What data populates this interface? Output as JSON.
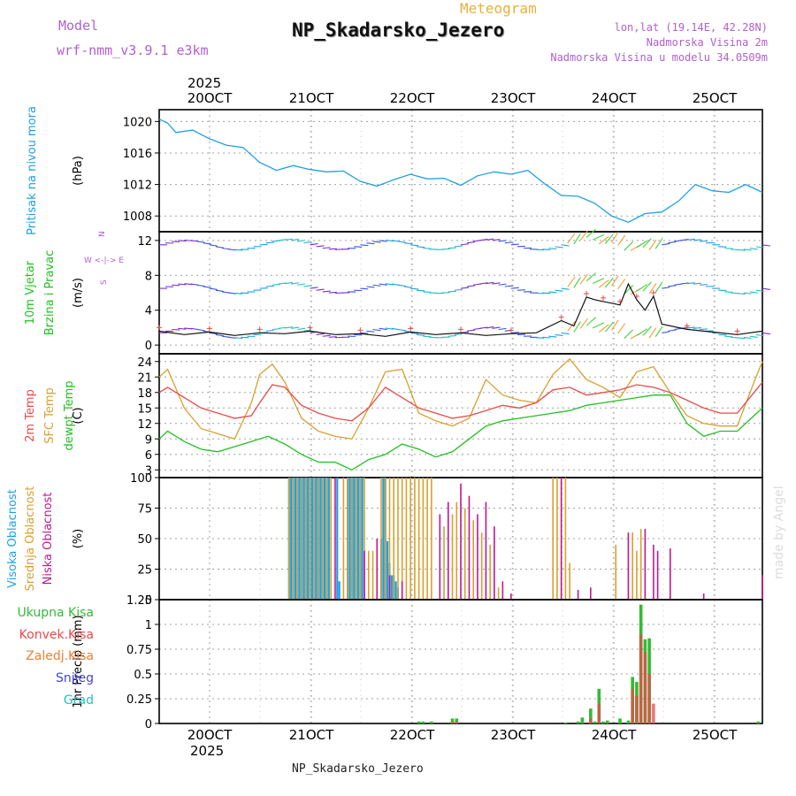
{
  "header": {
    "model_label": "Model",
    "model_name": "wrf-nmm_v3.9.1 e3km",
    "product": "Meteogram",
    "station": "NP_Skadarsko_Jezero",
    "lonlat": "lon,lat (19.14E, 42.28N)",
    "altitude": "Nadmorska Visina 2m",
    "model_altitude": "Nadmorska Visina u modelu 34.0509m",
    "footer_station": "NP_Skadarsko_Jezero",
    "credit": "made by Angel",
    "year_top": "2025",
    "year_bottom": "2025"
  },
  "colors": {
    "pressure": "#1fa0e6",
    "temp2m": "#e84a4a",
    "sfc": "#d8a030",
    "dewpt": "#22c022",
    "high_cloud": "#1fa0e6",
    "mid_cloud": "#d8a030",
    "low_cloud": "#c0178f",
    "total_precip": "#33bb33",
    "conv_precip": "#e84a4a",
    "frozen": "#f08030",
    "snow": "#4444dd",
    "grad": "#22c0c0",
    "model_text": "#b060d0"
  },
  "chart_data": [
    {
      "type": "line",
      "name": "pressure",
      "title": "Pritisak na nivou mora",
      "ylabel": "(hPa)",
      "ylim": [
        1006,
        1021.5
      ],
      "yticks": [
        1008,
        1012,
        1016,
        1020
      ],
      "day_ticks": [
        "20OCT",
        "21OCT",
        "22OCT",
        "23OCT",
        "24OCT",
        "25OCT"
      ],
      "xlim": [
        0,
        144
      ],
      "series": [
        {
          "name": "Pritisak",
          "x": [
            0,
            2,
            4,
            8,
            12,
            16,
            20,
            24,
            28,
            32,
            36,
            40,
            44,
            48,
            52,
            56,
            60,
            64,
            68,
            72,
            76,
            80,
            84,
            88,
            92,
            96,
            100,
            104,
            108,
            112,
            116,
            120,
            124,
            128,
            132,
            136,
            140,
            144
          ],
          "values": [
            1020.3,
            1019.8,
            1018.6,
            1018.9,
            1017.8,
            1017.0,
            1016.7,
            1014.8,
            1013.8,
            1014.4,
            1013.9,
            1013.6,
            1013.7,
            1012.4,
            1011.8,
            1012.6,
            1013.3,
            1012.7,
            1012.8,
            1011.9,
            1013.1,
            1013.6,
            1013.3,
            1013.8,
            1012.1,
            1010.6,
            1010.5,
            1009.6,
            1008.0,
            1007.2,
            1008.3,
            1008.5,
            1009.9,
            1012.0,
            1011.2,
            1011.0,
            1012.0,
            1011.0
          ]
        }
      ]
    },
    {
      "type": "line",
      "name": "wind",
      "title_1": "10m Vjetar",
      "title_2": "Brzina i Pravac",
      "ylabel": "(m/s)",
      "compass": "W <-|-> E",
      "compass_n": "N",
      "compass_s": "S",
      "ylim": [
        -1,
        13
      ],
      "yticks": [
        0,
        4,
        8,
        12
      ],
      "rows": [
        {
          "name": "upper",
          "base": 11.5
        },
        {
          "name": "middle",
          "base": 6.5
        },
        {
          "name": "lower",
          "base": 1.4
        }
      ],
      "series": [
        {
          "name": "Brzina",
          "x": [
            0,
            6,
            12,
            18,
            24,
            30,
            36,
            42,
            48,
            54,
            60,
            66,
            72,
            78,
            84,
            90,
            96,
            99,
            102,
            104,
            106,
            108,
            110,
            112,
            114,
            116,
            118,
            120,
            126,
            132,
            138,
            144
          ],
          "values": [
            1.6,
            1.2,
            1.5,
            1.1,
            1.4,
            1.3,
            1.6,
            1.2,
            1.3,
            1.0,
            1.5,
            1.2,
            1.4,
            1.1,
            1.3,
            1.4,
            2.8,
            2.2,
            5.5,
            5.2,
            5.0,
            4.8,
            4.6,
            7.0,
            5.2,
            4.0,
            5.6,
            2.4,
            1.8,
            1.5,
            1.2,
            1.6
          ]
        }
      ]
    },
    {
      "type": "line",
      "name": "temperature",
      "titles": [
        "2m Temp",
        "SFC Temp",
        "dewpt Temp"
      ],
      "ylabel": "(C)",
      "ylim": [
        1.5,
        25.5
      ],
      "yticks": [
        3,
        6,
        9,
        12,
        15,
        18,
        21,
        24
      ],
      "series": [
        {
          "name": "2m Temp",
          "x": [
            0,
            2,
            6,
            10,
            14,
            18,
            22,
            24,
            27,
            30,
            34,
            38,
            42,
            46,
            50,
            54,
            58,
            62,
            66,
            70,
            74,
            78,
            82,
            86,
            90,
            94,
            98,
            102,
            106,
            110,
            114,
            118,
            122,
            126,
            130,
            134,
            138,
            142,
            144
          ],
          "values": [
            18.0,
            19.0,
            17.0,
            15.0,
            14.0,
            13.0,
            13.5,
            16.0,
            19.5,
            19.0,
            15.5,
            14.0,
            13.0,
            12.5,
            15.0,
            19.0,
            17.0,
            15.0,
            14.0,
            13.0,
            13.5,
            14.5,
            15.5,
            15.0,
            16.0,
            18.5,
            19.0,
            17.5,
            18.0,
            18.5,
            19.5,
            19.0,
            18.0,
            16.5,
            15.0,
            14.0,
            14.0,
            18.0,
            20.0
          ]
        },
        {
          "name": "SFC Temp",
          "x": [
            0,
            2,
            6,
            10,
            14,
            18,
            22,
            24,
            27,
            30,
            34,
            38,
            42,
            46,
            50,
            54,
            58,
            62,
            66,
            70,
            74,
            78,
            82,
            86,
            90,
            94,
            98,
            102,
            106,
            110,
            114,
            118,
            122,
            126,
            130,
            134,
            138,
            142,
            144
          ],
          "values": [
            21.0,
            22.5,
            15.0,
            11.0,
            10.0,
            9.0,
            16.0,
            21.5,
            23.5,
            20.0,
            13.0,
            10.5,
            9.5,
            9.0,
            15.0,
            22.0,
            22.5,
            14.0,
            12.5,
            11.5,
            13.0,
            20.5,
            17.5,
            16.5,
            16.0,
            21.5,
            24.5,
            20.5,
            19.0,
            17.0,
            22.0,
            23.0,
            18.0,
            13.5,
            12.0,
            11.5,
            11.5,
            20.0,
            24.0
          ]
        },
        {
          "name": "dewpt Temp",
          "x": [
            0,
            2,
            6,
            10,
            14,
            18,
            22,
            26,
            30,
            34,
            38,
            42,
            46,
            50,
            54,
            58,
            62,
            66,
            70,
            74,
            78,
            82,
            86,
            90,
            94,
            98,
            102,
            106,
            110,
            114,
            118,
            122,
            126,
            130,
            134,
            138,
            142,
            144
          ],
          "values": [
            9.0,
            10.5,
            8.5,
            7.0,
            6.5,
            7.5,
            8.5,
            9.5,
            8.0,
            6.0,
            4.5,
            4.5,
            3.0,
            5.0,
            6.0,
            8.0,
            7.0,
            5.5,
            6.5,
            9.0,
            11.5,
            12.5,
            13.0,
            13.5,
            14.0,
            14.5,
            15.5,
            16.0,
            16.5,
            17.0,
            17.5,
            17.5,
            12.0,
            9.5,
            10.5,
            10.5,
            13.5,
            15.0
          ]
        }
      ]
    },
    {
      "type": "bar",
      "name": "clouds",
      "titles": [
        "Visoka Oblacnost",
        "Srednja Oblacnost",
        "Niska Oblacnost"
      ],
      "ylabel": "(%)",
      "ylim": [
        0,
        100
      ],
      "yticks": [
        0,
        25,
        50,
        75,
        100
      ],
      "series": [
        {
          "name": "Visoka Oblacnost",
          "x": [
            31,
            31.5,
            32,
            32.5,
            33,
            33.5,
            34,
            34.5,
            35,
            35.5,
            36,
            36.5,
            37,
            37.5,
            38,
            38.5,
            39,
            39.5,
            40,
            40.5,
            42.5,
            43,
            45,
            45.5,
            46,
            46.5,
            47,
            47.5,
            48,
            48.5,
            53,
            53.5,
            54,
            54.5,
            55,
            55.5,
            56,
            56.5,
            57
          ],
          "values": [
            100,
            100,
            100,
            100,
            100,
            100,
            100,
            100,
            100,
            100,
            100,
            100,
            100,
            100,
            100,
            100,
            100,
            100,
            100,
            100,
            100,
            15,
            100,
            100,
            100,
            100,
            100,
            100,
            100,
            100,
            50,
            100,
            100,
            48,
            30,
            20,
            20,
            15,
            10
          ]
        },
        {
          "name": "Srednja Oblacnost",
          "x": [
            31,
            32,
            33,
            34,
            35,
            36,
            37,
            38,
            39,
            40,
            41,
            44,
            45,
            46,
            47,
            48,
            49,
            50,
            51,
            53,
            54,
            55,
            56,
            57,
            58,
            59,
            60,
            61,
            62,
            63,
            64,
            65,
            68,
            70,
            71,
            73,
            75,
            77,
            79,
            81,
            94,
            95,
            96,
            97,
            98,
            109,
            113,
            114,
            115
          ],
          "values": [
            100,
            100,
            100,
            100,
            100,
            100,
            100,
            100,
            100,
            100,
            100,
            100,
            100,
            100,
            100,
            100,
            100,
            40,
            40,
            100,
            100,
            100,
            100,
            100,
            100,
            100,
            100,
            100,
            100,
            100,
            100,
            100,
            60,
            70,
            80,
            75,
            65,
            55,
            45,
            10,
            100,
            100,
            100,
            100,
            30,
            45,
            55,
            40,
            58
          ]
        },
        {
          "name": "Niska Oblacnost",
          "x": [
            42,
            49,
            52,
            55,
            58,
            67,
            69,
            72,
            74,
            76,
            78,
            80,
            82,
            84,
            96,
            100,
            103,
            112,
            116,
            118,
            119,
            122,
            130,
            144
          ],
          "values": [
            100,
            40,
            50,
            20,
            15,
            70,
            80,
            95,
            85,
            70,
            80,
            60,
            15,
            5,
            100,
            8,
            10,
            55,
            58,
            45,
            40,
            42,
            5,
            20
          ]
        }
      ]
    },
    {
      "type": "bar",
      "name": "precipitation",
      "titles": [
        "Ukupna Kisa",
        "Konvek.Kisa",
        "Zaledj.Kisa",
        "Snijeg",
        "Grad"
      ],
      "ylabel": "1hr Precip (mm)",
      "ylim": [
        0,
        1.25
      ],
      "yticks": [
        0,
        0.25,
        0.5,
        0.75,
        1,
        1.25
      ],
      "day_ticks": [
        "20OCT",
        "21OCT",
        "22OCT",
        "23OCT",
        "24OCT",
        "25OCT"
      ],
      "series": [
        {
          "name": "Ukupna Kisa",
          "x": [
            62,
            63,
            65,
            70,
            71,
            97,
            100,
            101,
            103,
            104,
            105,
            106,
            107,
            110,
            112,
            113,
            114,
            115,
            116,
            117,
            143
          ],
          "values": [
            0.02,
            0.02,
            0.02,
            0.05,
            0.05,
            0.01,
            0.02,
            0.06,
            0.15,
            0.02,
            0.35,
            0.02,
            0.03,
            0.05,
            0.03,
            0.47,
            0.42,
            1.2,
            0.85,
            0.86,
            0.02
          ]
        },
        {
          "name": "Konvek.Kisa",
          "x": [
            70,
            71,
            103,
            105,
            113,
            114,
            115,
            116,
            117,
            118
          ],
          "values": [
            0.02,
            0.02,
            0.05,
            0.2,
            0.35,
            0.28,
            0.9,
            0.72,
            0.5,
            0.2
          ]
        }
      ]
    }
  ]
}
